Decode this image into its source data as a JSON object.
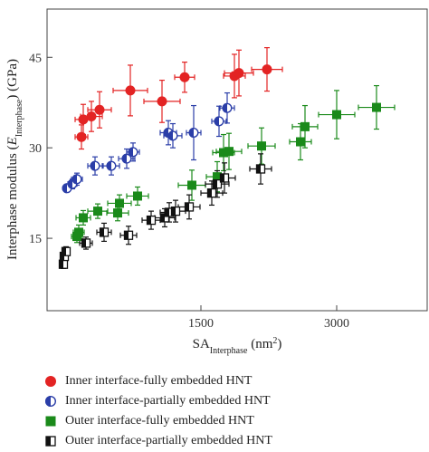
{
  "chart_data": {
    "type": "scatter",
    "xlabel_main": "SA",
    "xlabel_sub": "Interphase",
    "xlabel_unit": " (nm",
    "xlabel_unit_sup": "2",
    "xlabel_close": ")",
    "ylabel_main": "Interphase modulus (",
    "ylabel_var": "E",
    "ylabel_sub": "Interphase",
    "ylabel_close": ") (GPa)",
    "xlim": [
      -200,
      4000
    ],
    "ylim": [
      3,
      53
    ],
    "x_ticks": [
      1500,
      3000
    ],
    "x_tick_labels": [
      "1500",
      "3000"
    ],
    "y_ticks": [
      15,
      30,
      45
    ],
    "y_tick_labels": [
      "15",
      "30",
      "45"
    ],
    "grid": false,
    "legend_position": "bottom",
    "series": [
      {
        "name": "Inner interface-fully embedded HNT",
        "color": "#e32323",
        "marker": "circle",
        "points": [
          {
            "x": 180,
            "y": 31.8,
            "xerr": 70,
            "yerr": 2.0
          },
          {
            "x": 200,
            "y": 34.7,
            "xerr": 90,
            "yerr": 2.5
          },
          {
            "x": 290,
            "y": 35.2,
            "xerr": 120,
            "yerr": 2.5
          },
          {
            "x": 380,
            "y": 36.3,
            "xerr": 130,
            "yerr": 3.0
          },
          {
            "x": 720,
            "y": 39.5,
            "xerr": 190,
            "yerr": 4.2
          },
          {
            "x": 1070,
            "y": 37.7,
            "xerr": 200,
            "yerr": 3.5
          },
          {
            "x": 1320,
            "y": 41.7,
            "xerr": 110,
            "yerr": 2.5
          },
          {
            "x": 1870,
            "y": 41.9,
            "xerr": 120,
            "yerr": 3.6
          },
          {
            "x": 1920,
            "y": 42.4,
            "xerr": 160,
            "yerr": 3.8
          },
          {
            "x": 2230,
            "y": 43.0,
            "xerr": 170,
            "yerr": 3.6
          }
        ]
      },
      {
        "name": "Inner interface-partially embedded HNT",
        "color": "#2b3ea8",
        "marker": "half-circle",
        "points": [
          {
            "x": 20,
            "y": 23.3,
            "xerr": 40,
            "yerr": 0.6
          },
          {
            "x": 80,
            "y": 24.0,
            "xerr": 50,
            "yerr": 0.8
          },
          {
            "x": 130,
            "y": 24.8,
            "xerr": 60,
            "yerr": 1.0
          },
          {
            "x": 330,
            "y": 27.0,
            "xerr": 80,
            "yerr": 1.5
          },
          {
            "x": 510,
            "y": 27.0,
            "xerr": 90,
            "yerr": 1.5
          },
          {
            "x": 680,
            "y": 28.2,
            "xerr": 90,
            "yerr": 1.6
          },
          {
            "x": 750,
            "y": 29.3,
            "xerr": 70,
            "yerr": 1.5
          },
          {
            "x": 1140,
            "y": 32.5,
            "xerr": 90,
            "yerr": 2.0
          },
          {
            "x": 1190,
            "y": 32.0,
            "xerr": 100,
            "yerr": 2.0
          },
          {
            "x": 1420,
            "y": 32.5,
            "xerr": 80,
            "yerr": 4.5
          },
          {
            "x": 1700,
            "y": 34.4,
            "xerr": 80,
            "yerr": 2.5
          },
          {
            "x": 1790,
            "y": 36.6,
            "xerr": 80,
            "yerr": 2.5
          }
        ]
      },
      {
        "name": "Outer interface-fully embedded HNT",
        "color": "#1a8a1a",
        "marker": "square",
        "points": [
          {
            "x": 130,
            "y": 15.3,
            "xerr": 60,
            "yerr": 1.0
          },
          {
            "x": 150,
            "y": 16.0,
            "xerr": 60,
            "yerr": 1.2
          },
          {
            "x": 200,
            "y": 18.4,
            "xerr": 80,
            "yerr": 1.2
          },
          {
            "x": 360,
            "y": 19.5,
            "xerr": 110,
            "yerr": 1.2
          },
          {
            "x": 580,
            "y": 19.2,
            "xerr": 120,
            "yerr": 1.3
          },
          {
            "x": 600,
            "y": 20.8,
            "xerr": 130,
            "yerr": 1.4
          },
          {
            "x": 800,
            "y": 22.0,
            "xerr": 120,
            "yerr": 1.5
          },
          {
            "x": 1400,
            "y": 23.8,
            "xerr": 150,
            "yerr": 2.5
          },
          {
            "x": 1680,
            "y": 25.2,
            "xerr": 120,
            "yerr": 2.5
          },
          {
            "x": 1750,
            "y": 29.2,
            "xerr": 120,
            "yerr": 3.0
          },
          {
            "x": 1810,
            "y": 29.4,
            "xerr": 140,
            "yerr": 3.0
          },
          {
            "x": 2170,
            "y": 30.3,
            "xerr": 150,
            "yerr": 3.0
          },
          {
            "x": 2600,
            "y": 31.0,
            "xerr": 120,
            "yerr": 3.0
          },
          {
            "x": 2650,
            "y": 33.5,
            "xerr": 140,
            "yerr": 3.5
          },
          {
            "x": 3000,
            "y": 35.5,
            "xerr": 200,
            "yerr": 4.0
          },
          {
            "x": 3440,
            "y": 36.7,
            "xerr": 200,
            "yerr": 3.6
          }
        ]
      },
      {
        "name": "Outer interface-partially embedded HNT",
        "color": "#111111",
        "marker": "half-square",
        "points": [
          {
            "x": -20,
            "y": 10.7,
            "xerr": 30,
            "yerr": 0.7
          },
          {
            "x": -10,
            "y": 12.0,
            "xerr": 30,
            "yerr": 0.8
          },
          {
            "x": 10,
            "y": 12.8,
            "xerr": 40,
            "yerr": 0.8
          },
          {
            "x": 230,
            "y": 14.2,
            "xerr": 70,
            "yerr": 1.0
          },
          {
            "x": 430,
            "y": 16.0,
            "xerr": 80,
            "yerr": 1.5
          },
          {
            "x": 700,
            "y": 15.5,
            "xerr": 90,
            "yerr": 1.5
          },
          {
            "x": 950,
            "y": 18.0,
            "xerr": 100,
            "yerr": 1.5
          },
          {
            "x": 1100,
            "y": 18.4,
            "xerr": 110,
            "yerr": 1.5
          },
          {
            "x": 1150,
            "y": 19.3,
            "xerr": 100,
            "yerr": 1.6
          },
          {
            "x": 1220,
            "y": 19.5,
            "xerr": 110,
            "yerr": 1.8
          },
          {
            "x": 1370,
            "y": 20.2,
            "xerr": 120,
            "yerr": 2.0
          },
          {
            "x": 1620,
            "y": 22.5,
            "xerr": 120,
            "yerr": 2.0
          },
          {
            "x": 1680,
            "y": 24.0,
            "xerr": 130,
            "yerr": 2.2
          },
          {
            "x": 1760,
            "y": 25.0,
            "xerr": 120,
            "yerr": 2.5
          },
          {
            "x": 2160,
            "y": 26.5,
            "xerr": 120,
            "yerr": 2.5
          }
        ]
      }
    ]
  }
}
